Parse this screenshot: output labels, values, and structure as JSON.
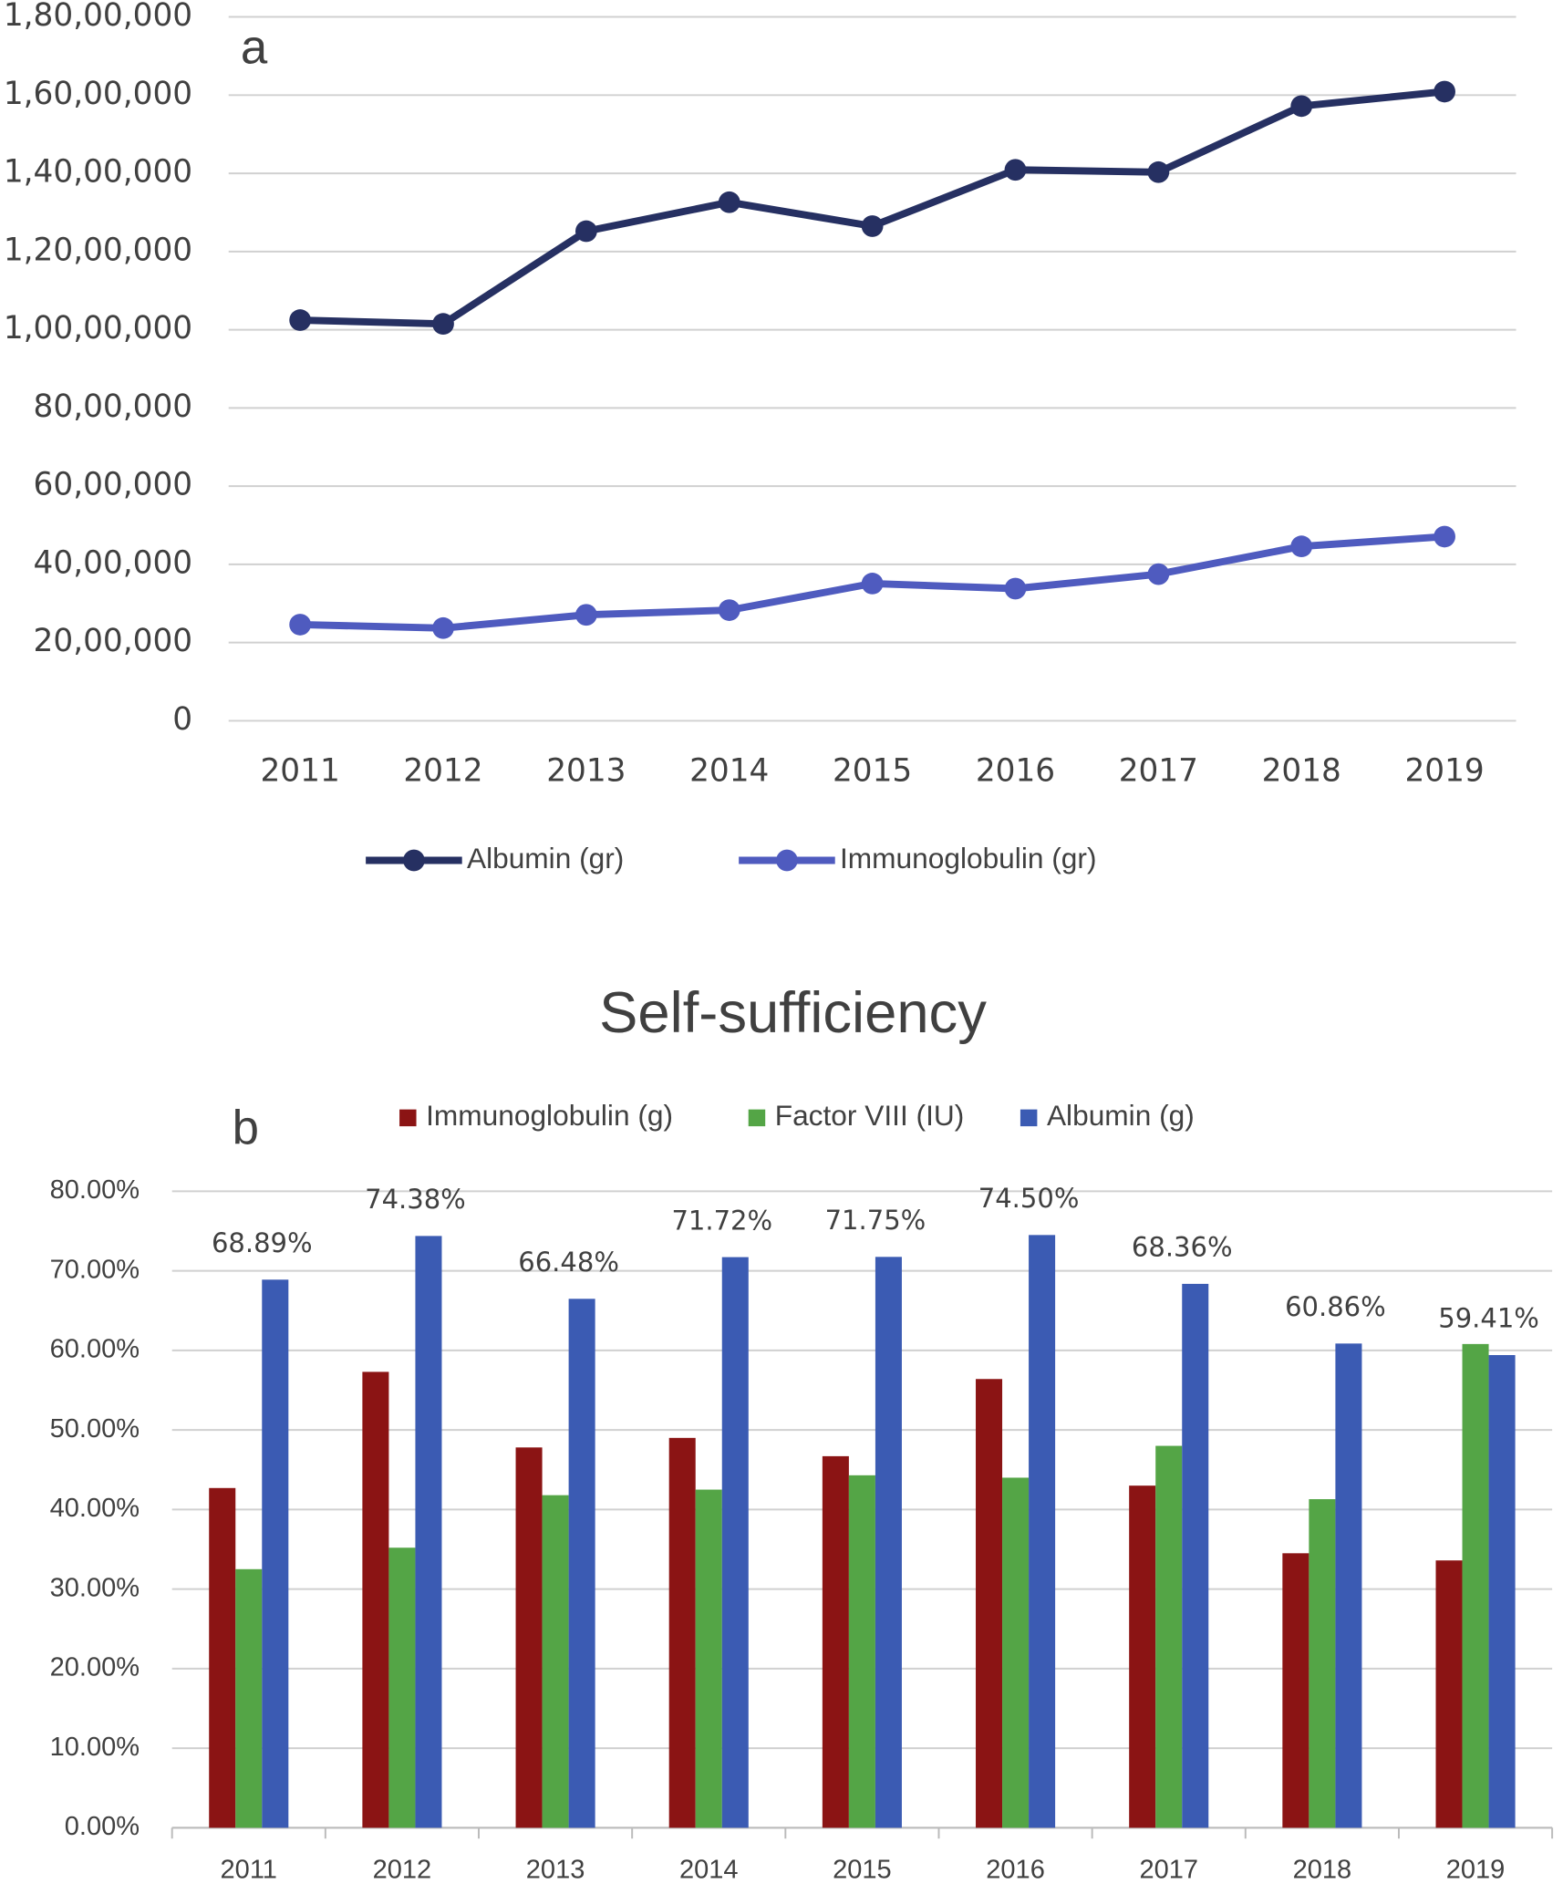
{
  "chart_data": [
    {
      "type": "line",
      "annotation": "a",
      "categories": [
        "2011",
        "2012",
        "2013",
        "2014",
        "2015",
        "2016",
        "2017",
        "2018",
        "2019"
      ],
      "series": [
        {
          "name": "Albumin (gr)",
          "color": "#263062",
          "values": [
            10246000,
            10150000,
            12520000,
            13260000,
            12650000,
            14090000,
            14030000,
            15720000,
            16090000
          ]
        },
        {
          "name": "Immunoglobulin (gr)",
          "color": "#4f5bbf",
          "values": [
            2460000,
            2370000,
            2710000,
            2830000,
            3510000,
            3380000,
            3750000,
            4460000,
            4710000
          ]
        }
      ],
      "ylim": [
        0,
        18000000
      ],
      "yticks": [
        0,
        {
          "value": 2000000,
          "label": "20,00,000"
        },
        {
          "value": 4000000,
          "label": "40,00,000"
        },
        {
          "value": 6000000,
          "label": "60,00,000"
        },
        {
          "value": 8000000,
          "label": "80,00,000"
        },
        {
          "value": 10000000,
          "label": "1,00,00,000"
        },
        {
          "value": 12000000,
          "label": "1,20,00,000"
        },
        {
          "value": 14000000,
          "label": "1,40,00,000"
        },
        {
          "value": 16000000,
          "label": "1,60,00,000"
        },
        {
          "value": 18000000,
          "label": "1,80,00,000"
        }
      ],
      "grid": true,
      "legend": "bottom"
    },
    {
      "type": "bar",
      "title": "Self-sufficiency",
      "annotation": "b",
      "categories": [
        "2011",
        "2012",
        "2013",
        "2014",
        "2015",
        "2016",
        "2017",
        "2018",
        "2019"
      ],
      "series": [
        {
          "name": "Immunoglobulin (g)",
          "color": "#8b1414",
          "values": [
            42.7,
            57.3,
            47.8,
            49.0,
            46.7,
            56.4,
            43.0,
            34.5,
            33.6
          ]
        },
        {
          "name": "Factor VIII (IU)",
          "color": "#54a546",
          "values": [
            32.5,
            35.2,
            41.8,
            42.5,
            44.3,
            44.0,
            48.0,
            41.3,
            60.8
          ]
        },
        {
          "name": "Albumin (g)",
          "color": "#3b5bb3",
          "values": [
            68.89,
            74.38,
            66.48,
            71.72,
            71.75,
            74.5,
            68.36,
            60.86,
            59.41
          ],
          "value_labels": [
            "68.89%",
            "74.38%",
            "66.48%",
            "71.72%",
            "71.75%",
            "74.50%",
            "68.36%",
            "60.86%",
            "59.41%"
          ]
        }
      ],
      "ylim": [
        0,
        80
      ],
      "yticks": [
        {
          "value": 0,
          "label": "0.00%"
        },
        {
          "value": 10,
          "label": "10.00%"
        },
        {
          "value": 20,
          "label": "20.00%"
        },
        {
          "value": 30,
          "label": "30.00%"
        },
        {
          "value": 40,
          "label": "40.00%"
        },
        {
          "value": 50,
          "label": "50.00%"
        },
        {
          "value": 60,
          "label": "60.00%"
        },
        {
          "value": 70,
          "label": "70.00%"
        },
        {
          "value": 80,
          "label": "80.00%"
        }
      ],
      "grid": true,
      "legend": "top"
    }
  ]
}
